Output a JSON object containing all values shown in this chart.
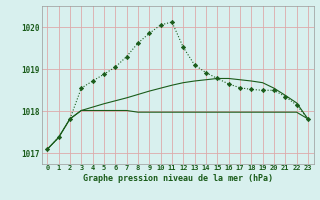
{
  "title": "Graphe pression niveau de la mer (hPa)",
  "bg": "#d8f0ee",
  "plot_bg": "#d8f0ee",
  "grid_color": "#ddaaaa",
  "lc": "#1a5c1a",
  "ylim": [
    1016.75,
    1020.5
  ],
  "yticks": [
    1017,
    1018,
    1019,
    1020
  ],
  "n": 24,
  "s1": [
    1017.1,
    1017.38,
    1017.82,
    1018.02,
    1018.02,
    1018.02,
    1018.02,
    1018.02,
    1017.98,
    1017.98,
    1017.98,
    1017.98,
    1017.98,
    1017.98,
    1017.98,
    1017.98,
    1017.98,
    1017.98,
    1017.98,
    1017.98,
    1017.98,
    1017.98,
    1017.98,
    1017.82
  ],
  "s2": [
    1017.1,
    1017.38,
    1017.82,
    1018.02,
    1018.1,
    1018.18,
    1018.25,
    1018.32,
    1018.4,
    1018.48,
    1018.55,
    1018.62,
    1018.68,
    1018.72,
    1018.75,
    1018.78,
    1018.78,
    1018.75,
    1018.72,
    1018.68,
    1018.55,
    1018.38,
    1018.2,
    1017.82
  ],
  "s3": [
    1017.1,
    1017.38,
    1017.82,
    1018.55,
    1018.72,
    1018.88,
    1019.05,
    1019.3,
    1019.62,
    1019.85,
    1020.05,
    1020.12,
    1019.52,
    1019.1,
    1018.92,
    1018.78,
    1018.65,
    1018.56,
    1018.52,
    1018.5,
    1018.5,
    1018.35,
    1018.15,
    1017.82
  ],
  "title_fontsize": 6.0,
  "tick_fontsize": 5.0,
  "ytick_fontsize": 5.5
}
